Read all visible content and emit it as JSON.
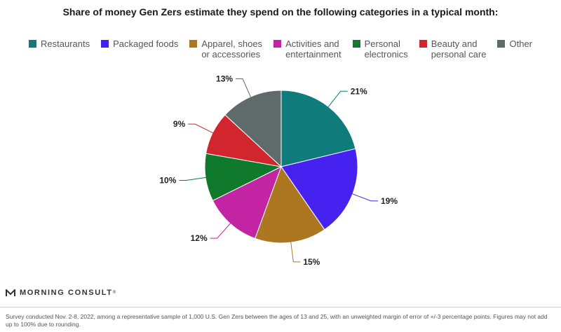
{
  "chart_data": {
    "type": "pie",
    "title": "Share of money Gen Zers estimate they spend on the following categories in a typical month:",
    "legend_position": "top",
    "slices": [
      {
        "name": "Restaurants",
        "value": 21,
        "label": "21%",
        "color": "#0f7b7b"
      },
      {
        "name": "Packaged foods",
        "value": 19,
        "label": "19%",
        "color": "#4622f0"
      },
      {
        "name": "Apparel, shoes\nor accessories",
        "value": 15,
        "label": "15%",
        "color": "#ad7722"
      },
      {
        "name": "Activities and\nentertainment",
        "value": 12,
        "label": "12%",
        "color": "#c224a4"
      },
      {
        "name": "Personal\nelectronics",
        "value": 10,
        "label": "10%",
        "color": "#0f7a2b"
      },
      {
        "name": "Beauty and\npersonal care",
        "value": 9,
        "label": "9%",
        "color": "#d2262e"
      },
      {
        "name": "Other",
        "value": 13,
        "label": "13%",
        "color": "#5f6a6a"
      }
    ]
  },
  "brand": {
    "name": "MORNING CONSULT",
    "mark": "®"
  },
  "footnote": "Survey conducted Nov. 2-8, 2022, among a representative sample of 1,000 U.S. Gen Zers between the ages of 13 and 25, with an unweighted margin of error of +/-3 percentage points. Figures may not add up to 100% due to rounding."
}
